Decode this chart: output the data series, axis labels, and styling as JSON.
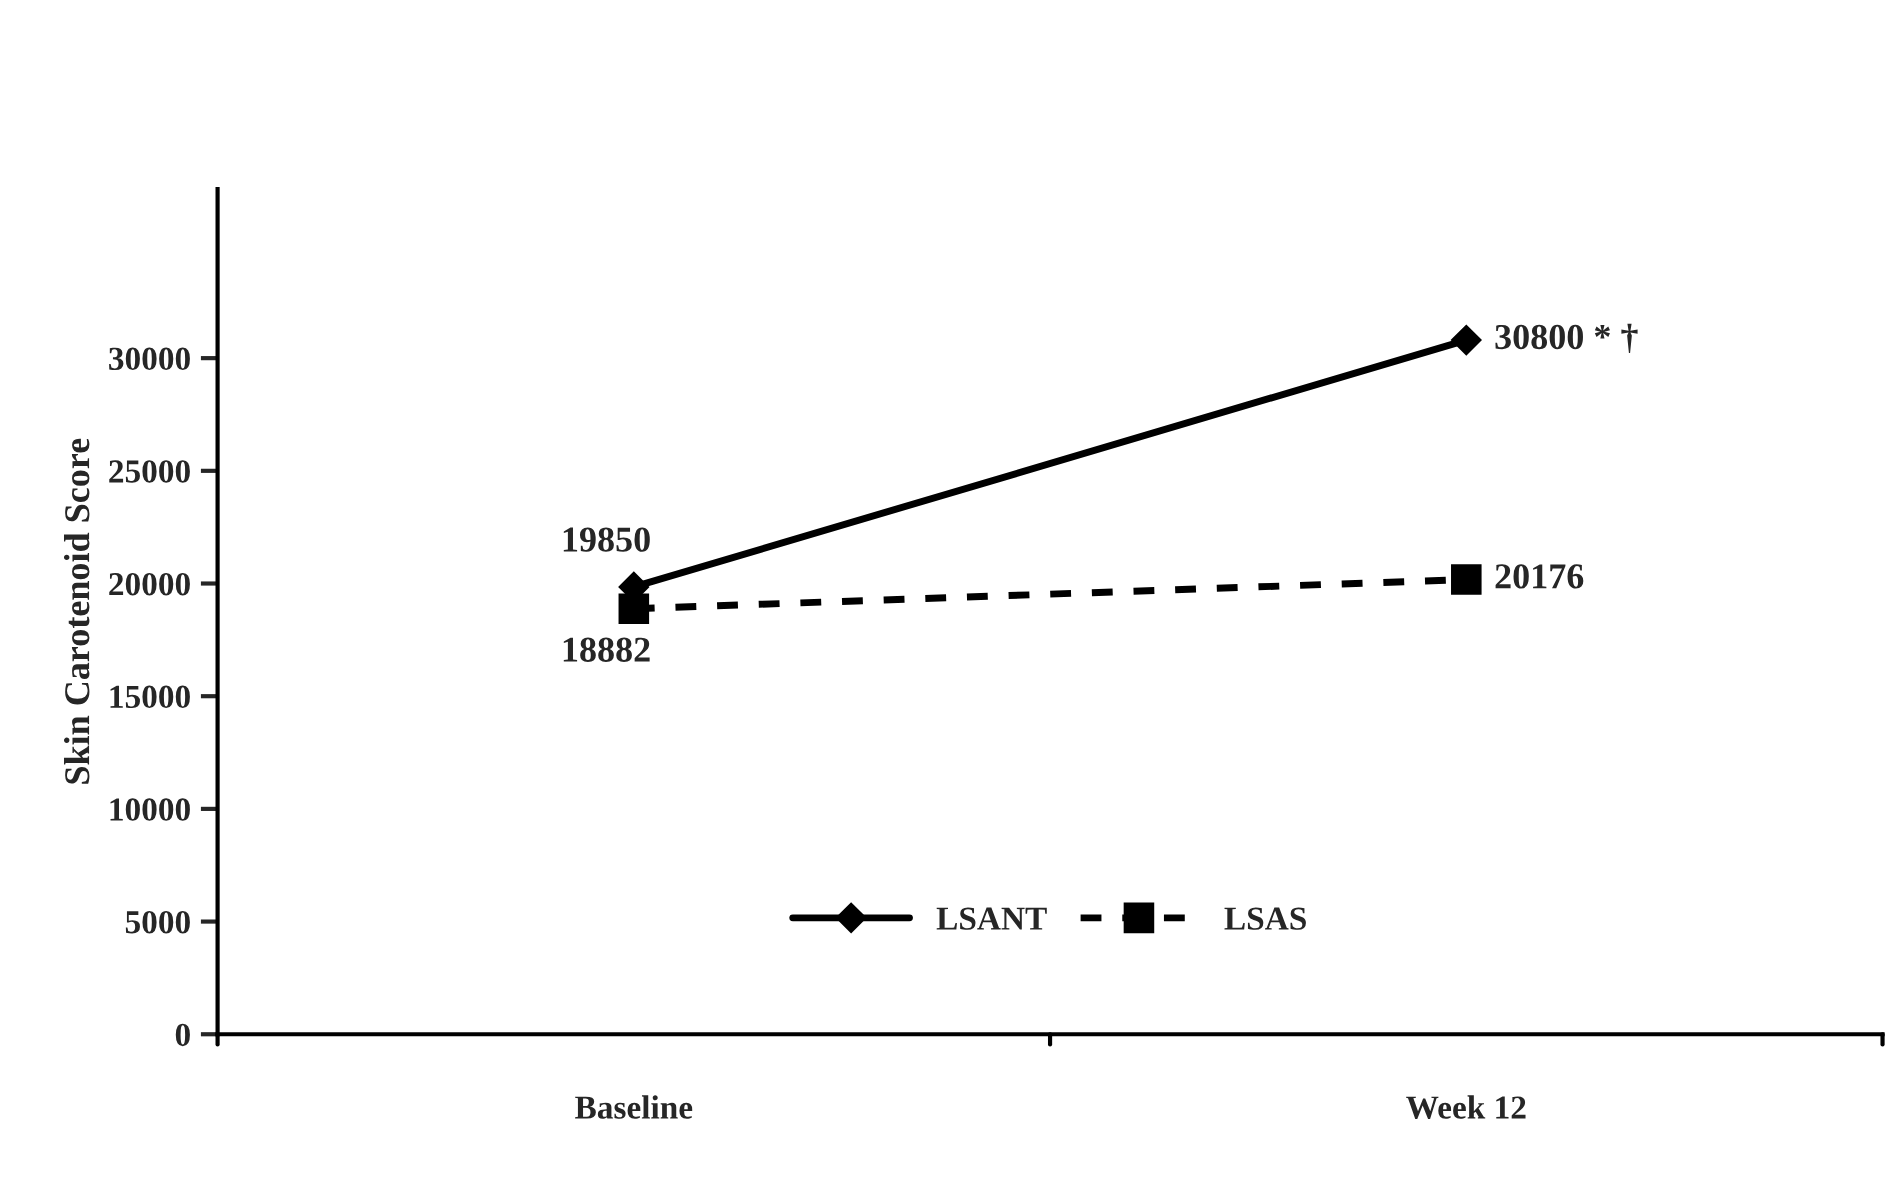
{
  "chart_data": {
    "type": "line",
    "ylabel": "Skin Carotenoid Score",
    "categories": [
      "Baseline",
      "Week 12"
    ],
    "series": [
      {
        "name": "LSANT",
        "color": "#000000",
        "values": [
          19850,
          30800
        ],
        "marker": "diamond",
        "line_style": "solid",
        "value_labels": [
          "19850",
          "30800 * †"
        ]
      },
      {
        "name": "LSAS",
        "color": "#000000",
        "values": [
          18882,
          20176
        ],
        "marker": "square",
        "line_style": "dashed",
        "value_labels": [
          "18882",
          "20176"
        ]
      }
    ],
    "ylim": [
      0,
      37500
    ],
    "yticks": [
      0,
      5000,
      10000,
      15000,
      20000,
      25000,
      30000
    ],
    "grid": false,
    "legend": "bottom"
  }
}
